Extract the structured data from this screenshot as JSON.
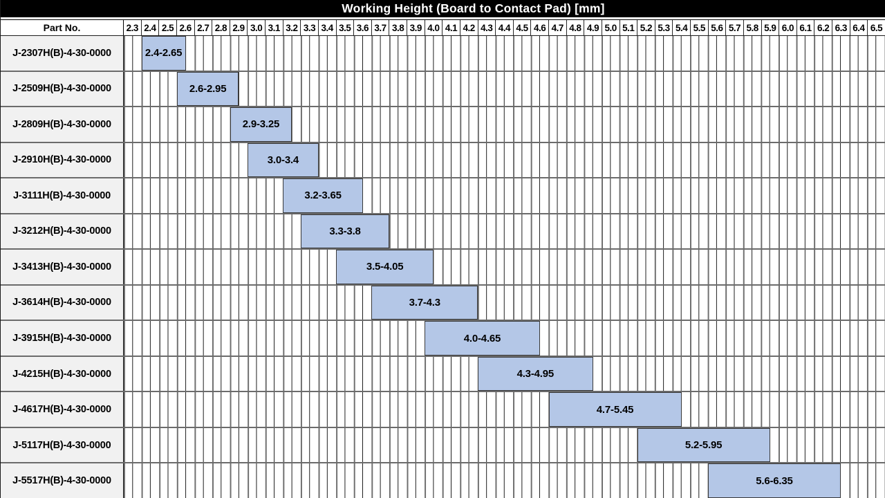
{
  "title": "Working Height (Board to Contact Pad) [mm]",
  "table": {
    "part_col_header": "Part No."
  },
  "colors": {
    "bar_fill": "#b4c7e7",
    "bar_border": "#383838",
    "part_cell_bg": "#f1f1f1",
    "row_separator": "#6b6b6b",
    "major_gridline": "#6e6e6e",
    "minor_gridline": "#1a1a1a",
    "title_bg": "#000000",
    "title_text": "#ffffff"
  },
  "chart_data": {
    "type": "bar",
    "subtype": "horizontal-range-gantt",
    "title": "Working Height (Board to Contact Pad) [mm]",
    "xlabel": "Working Height (Board to Contact Pad) [mm]",
    "ylabel": "Part No.",
    "xlim": [
      2.3,
      6.6
    ],
    "x_tick_step": 0.1,
    "x_minor_step": 0.05,
    "grid": true,
    "legend": false,
    "x_tick_labels": [
      "2.3",
      "2.4",
      "2.5",
      "2.6",
      "2.7",
      "2.8",
      "2.9",
      "3.0",
      "3.1",
      "3.2",
      "3.3",
      "3.4",
      "3.5",
      "3.6",
      "3.7",
      "3.8",
      "3.9",
      "4.0",
      "4.1",
      "4.2",
      "4.3",
      "4.4",
      "4.5",
      "4.6",
      "4.7",
      "4.8",
      "4.9",
      "5.0",
      "5.1",
      "5.2",
      "5.3",
      "5.4",
      "5.5",
      "5.6",
      "5.7",
      "5.8",
      "5.9",
      "6.0",
      "6.1",
      "6.2",
      "6.3",
      "6.4",
      "6.5"
    ],
    "rows": [
      {
        "part_no": "J-2307H(B)-4-30-0000",
        "start": 2.4,
        "end": 2.65,
        "label": "2.4-2.65"
      },
      {
        "part_no": "J-2509H(B)-4-30-0000",
        "start": 2.6,
        "end": 2.95,
        "label": "2.6-2.95"
      },
      {
        "part_no": "J-2809H(B)-4-30-0000",
        "start": 2.9,
        "end": 3.25,
        "label": "2.9-3.25"
      },
      {
        "part_no": "J-2910H(B)-4-30-0000",
        "start": 3.0,
        "end": 3.4,
        "label": "3.0-3.4"
      },
      {
        "part_no": "J-3111H(B)-4-30-0000",
        "start": 3.2,
        "end": 3.65,
        "label": "3.2-3.65"
      },
      {
        "part_no": "J-3212H(B)-4-30-0000",
        "start": 3.3,
        "end": 3.8,
        "label": "3.3-3.8"
      },
      {
        "part_no": "J-3413H(B)-4-30-0000",
        "start": 3.5,
        "end": 4.05,
        "label": "3.5-4.05"
      },
      {
        "part_no": "J-3614H(B)-4-30-0000",
        "start": 3.7,
        "end": 4.3,
        "label": "3.7-4.3"
      },
      {
        "part_no": "J-3915H(B)-4-30-0000",
        "start": 4.0,
        "end": 4.65,
        "label": "4.0-4.65"
      },
      {
        "part_no": "J-4215H(B)-4-30-0000",
        "start": 4.3,
        "end": 4.95,
        "label": "4.3-4.95"
      },
      {
        "part_no": "J-4617H(B)-4-30-0000",
        "start": 4.7,
        "end": 5.45,
        "label": "4.7-5.45"
      },
      {
        "part_no": "J-5117H(B)-4-30-0000",
        "start": 5.2,
        "end": 5.95,
        "label": "5.2-5.95"
      },
      {
        "part_no": "J-5517H(B)-4-30-0000",
        "start": 5.6,
        "end": 6.35,
        "label": "5.6-6.35"
      }
    ]
  }
}
